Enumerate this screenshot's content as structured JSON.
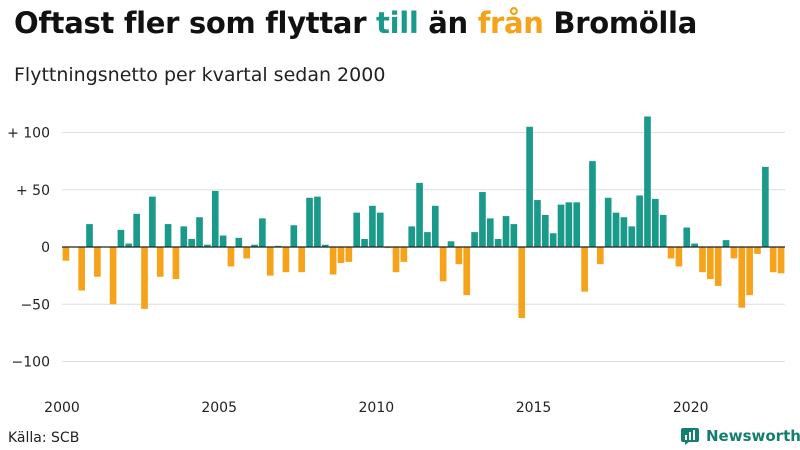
{
  "header": {
    "title_parts": [
      "Oftast fler som flyttar ",
      "till",
      " än ",
      "från",
      " Bromölla"
    ],
    "subtitle": "Flyttningsnetto per kvartal sedan 2000"
  },
  "footer": {
    "source": "Källa: SCB",
    "brand": "Newsworthy",
    "brand_icon": "bar-chart-logo-icon"
  },
  "colors": {
    "positive": "#1a9a8a",
    "negative": "#f5a31a",
    "grid": "#dddddd",
    "axis": "#222222"
  },
  "chart_data": {
    "type": "bar",
    "title": "Flyttningsnetto per kvartal sedan 2000",
    "x_start": "2000-Q1",
    "ylim": [
      -110,
      118
    ],
    "yticks": [
      {
        "value": 100,
        "label": "+ 100"
      },
      {
        "value": 50,
        "label": "+  50"
      },
      {
        "value": 0,
        "label": "0"
      },
      {
        "value": -50,
        "label": "−50"
      },
      {
        "value": -100,
        "label": "−100"
      }
    ],
    "xticks": [
      {
        "year": 2000,
        "label": "2000"
      },
      {
        "year": 2005,
        "label": "2005"
      },
      {
        "year": 2010,
        "label": "2010"
      },
      {
        "year": 2015,
        "label": "2015"
      },
      {
        "year": 2020,
        "label": "2020"
      }
    ],
    "grid": true,
    "values": [
      -12,
      0,
      -38,
      20,
      -26,
      0,
      -50,
      15,
      3,
      29,
      -54,
      44,
      -26,
      20,
      -28,
      18,
      7,
      26,
      2,
      49,
      10,
      -17,
      8,
      -10,
      2,
      25,
      -25,
      1,
      -22,
      19,
      -22,
      43,
      44,
      2,
      -24,
      -14,
      -13,
      30,
      7,
      36,
      30,
      -1,
      -22,
      -13,
      18,
      56,
      13,
      36,
      -30,
      5,
      -15,
      -42,
      13,
      48,
      25,
      7,
      27,
      20,
      -62,
      105,
      41,
      28,
      12,
      37,
      39,
      39,
      -39,
      75,
      -15,
      43,
      30,
      26,
      18,
      45,
      114,
      42,
      28,
      -10,
      -17,
      17,
      3,
      -22,
      -28,
      -34,
      6,
      -10,
      -53,
      -42,
      -6,
      70,
      -22,
      -23
    ]
  }
}
